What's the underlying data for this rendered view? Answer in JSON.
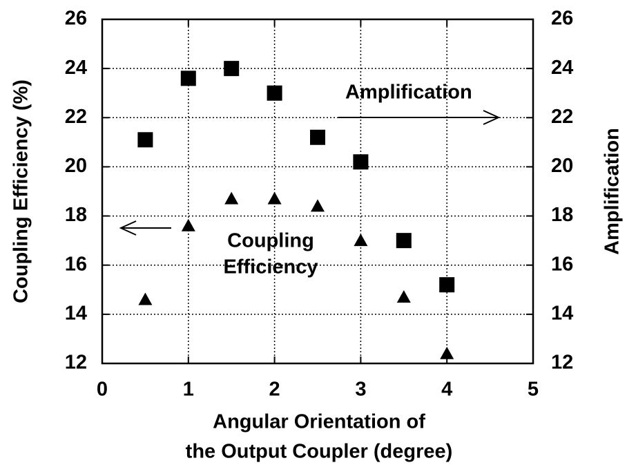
{
  "chart_data": {
    "type": "scatter",
    "xlabel": [
      "Angular Orientation of",
      "the Output Coupler (degree)"
    ],
    "ylabel": "Coupling  Efficiency (%)",
    "y2label": "Amplification",
    "annotations": [
      "Amplification",
      "Coupling",
      "Efficiency"
    ],
    "x": [
      0.5,
      1,
      1.5,
      2,
      2.5,
      3,
      3.5,
      4
    ],
    "series": [
      {
        "color": "#000000",
        "marker": "triangle",
        "values": [
          14.6,
          17.6,
          18.7,
          18.7,
          18.4,
          17.0,
          14.7,
          12.4
        ]
      },
      {
        "color": "#000000",
        "marker": "square",
        "axis": "y2",
        "values": [
          21.1,
          23.6,
          24.0,
          23.0,
          21.2,
          20.2,
          17.0,
          15.2
        ]
      }
    ],
    "xlim": [
      0,
      5
    ],
    "xticks": [
      0,
      1,
      2,
      3,
      4,
      5
    ],
    "ylim": [
      12,
      26
    ],
    "yticks": [
      12,
      14,
      16,
      18,
      20,
      22,
      24,
      26
    ],
    "y2lim": [
      12,
      26
    ],
    "y2ticks": [
      12,
      14,
      16,
      18,
      20,
      22,
      24,
      26
    ],
    "grid": true
  }
}
